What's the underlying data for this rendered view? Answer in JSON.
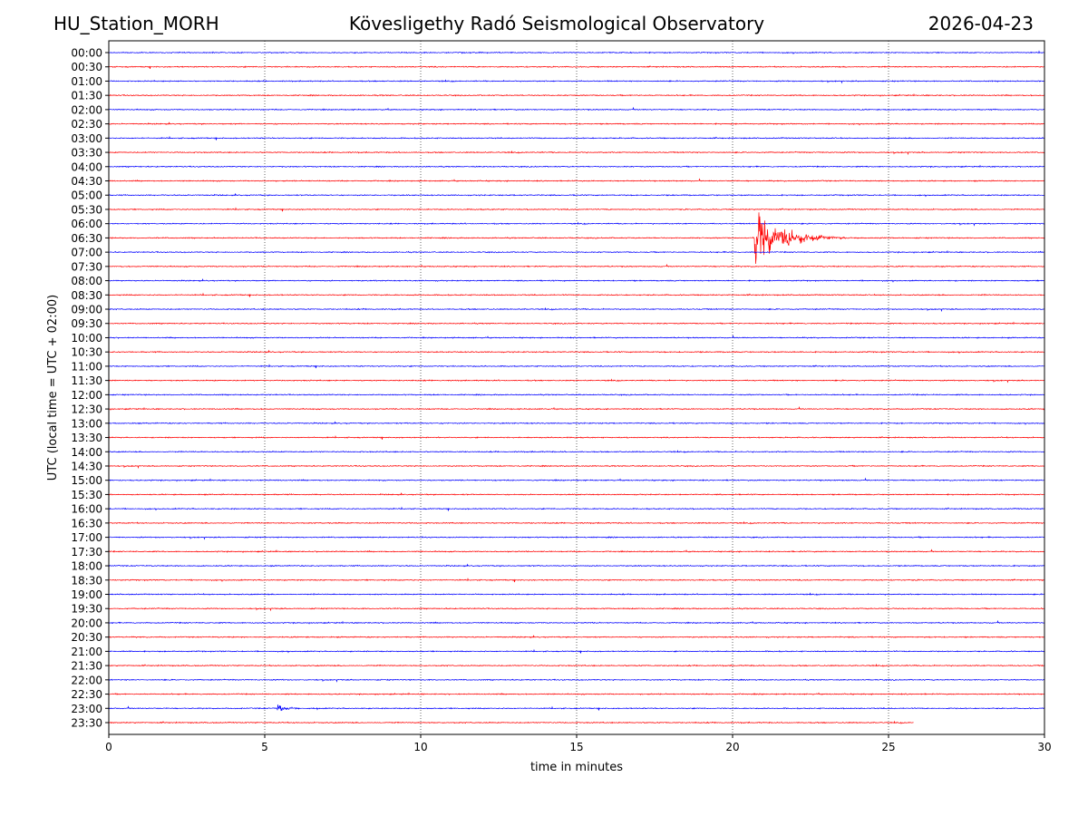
{
  "header": {
    "station": "HU_Station_MORH",
    "observatory": "Kövesligethy Radó Seismological Observatory",
    "date": "2026-04-23"
  },
  "chart_data": {
    "type": "line",
    "xlabel": "time in minutes",
    "ylabel": "UTC (local time = UTC + 02:00)",
    "xlim": [
      0,
      30
    ],
    "x_ticks": [
      0,
      5,
      10,
      15,
      20,
      25,
      30
    ],
    "x_tick_labels": [
      "0",
      "5",
      "10",
      "15",
      "20",
      "25",
      "30"
    ],
    "grid": "vertical dotted lines at major x ticks",
    "colors": {
      "even_rows": "#0000ff",
      "odd_rows": "#ff0000"
    },
    "rows": [
      "00:00",
      "00:30",
      "01:00",
      "01:30",
      "02:00",
      "02:30",
      "03:00",
      "03:30",
      "04:00",
      "04:30",
      "05:00",
      "05:30",
      "06:00",
      "06:30",
      "07:00",
      "07:30",
      "08:00",
      "08:30",
      "09:00",
      "09:30",
      "10:00",
      "10:30",
      "11:00",
      "11:30",
      "12:00",
      "12:30",
      "13:00",
      "13:30",
      "14:00",
      "14:30",
      "15:00",
      "15:30",
      "16:00",
      "16:30",
      "17:00",
      "17:30",
      "18:00",
      "18:30",
      "19:00",
      "19:30",
      "20:00",
      "20:30",
      "21:00",
      "21:30",
      "22:00",
      "22:30",
      "23:00",
      "23:30"
    ],
    "last_row_end_minute": 25.8,
    "events": [
      {
        "row": "06:30",
        "onset_minute": 20.7,
        "duration_minutes": 4.5,
        "peak_amplitude_rows": 2.8
      },
      {
        "row": "23:00",
        "onset_minute": 5.4,
        "duration_minutes": 1.4,
        "peak_amplitude_rows": 0.5
      }
    ]
  }
}
